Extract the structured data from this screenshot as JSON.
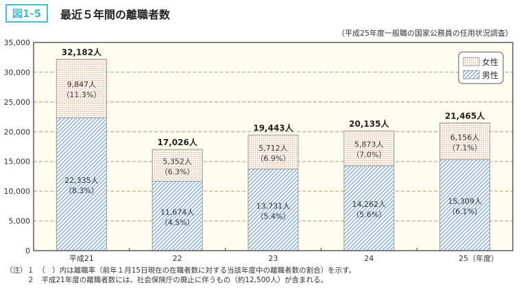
{
  "header": {
    "figure_label": "図1-5",
    "title": "最近５年間の離職者数",
    "source": "（平成25年度一般職の国家公務員の任用状況調査）"
  },
  "chart_data": {
    "type": "bar",
    "stacked": true,
    "categories": [
      "平成21",
      "22",
      "23",
      "24",
      "25（年度）"
    ],
    "series": [
      {
        "name": "男性",
        "values": [
          22335,
          11674,
          13731,
          14262,
          15309
        ],
        "labels": [
          "22,335人",
          "11,674人",
          "13,731人",
          "14,262人",
          "15,309人"
        ],
        "rates": [
          "（8.3%）",
          "（4.5%）",
          "（5.4%）",
          "（5.6%）",
          "（6.1%）"
        ],
        "color": "#8fb3e0"
      },
      {
        "name": "女性",
        "values": [
          9847,
          5352,
          5712,
          5873,
          6156
        ],
        "labels": [
          "9,847人",
          "5,352人",
          "5,712人",
          "5,873人",
          "6,156人"
        ],
        "rates": [
          "（11.3%）",
          "（6.3%）",
          "（6.9%）",
          "（7.0%）",
          "（7.1%）"
        ],
        "color": "#f4a77a"
      }
    ],
    "totals": [
      "32,182人",
      "17,026人",
      "19,443人",
      "20,135人",
      "21,465人"
    ],
    "ylim": [
      0,
      35000
    ],
    "yticks": [
      "0",
      "5,000",
      "10,000",
      "15,000",
      "20,000",
      "25,000",
      "30,000",
      "35,000"
    ],
    "grid": true,
    "legend": "top-right",
    "background": "#fefdf0"
  },
  "notes": [
    "（注）１　（　）内は離職率（前年１月15日現在の在職者数に対する当該年度中の離職者数の割合）を示す。",
    "　　　２　平成21年度の離職者数には、社会保険庁の廃止に伴うもの（約12,500人）が含まれる。"
  ]
}
